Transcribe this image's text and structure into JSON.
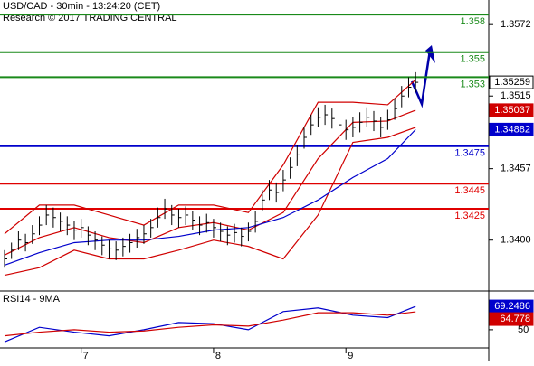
{
  "chart_data": {
    "type": "ohlc",
    "title": "USD/CAD - 30min - 13:24:20 (CET)",
    "subtitle": "Research © 2017 TRADING CENTRAL",
    "high": [
      1.3392,
      1.3398,
      1.3407,
      1.3405,
      1.3412,
      1.3419,
      1.3428,
      1.3426,
      1.3422,
      1.3419,
      1.3415,
      1.3417,
      1.3411,
      1.3407,
      1.3403,
      1.34,
      1.3399,
      1.3402,
      1.3405,
      1.3409,
      1.3412,
      1.3417,
      1.3426,
      1.3433,
      1.3428,
      1.3425,
      1.3427,
      1.3423,
      1.3419,
      1.3421,
      1.3417,
      1.3414,
      1.3411,
      1.3413,
      1.341,
      1.3414,
      1.3423,
      1.344,
      1.3448,
      1.3446,
      1.3456,
      1.3466,
      1.3476,
      1.349,
      1.35,
      1.3506,
      1.3508,
      1.3505,
      1.35,
      1.3496,
      1.3498,
      1.3502,
      1.3506,
      1.3503,
      1.3498,
      1.3504,
      1.3513,
      1.3523,
      1.353,
      1.3534
    ],
    "low": [
      1.3378,
      1.3385,
      1.3392,
      1.3391,
      1.3397,
      1.3404,
      1.3412,
      1.341,
      1.3407,
      1.3404,
      1.34,
      1.3402,
      1.3396,
      1.3392,
      1.3388,
      1.3385,
      1.3384,
      1.3387,
      1.339,
      1.3394,
      1.3397,
      1.3402,
      1.341,
      1.3417,
      1.3412,
      1.341,
      1.3412,
      1.3408,
      1.3404,
      1.3406,
      1.3402,
      1.3399,
      1.3396,
      1.3398,
      1.3395,
      1.3399,
      1.3406,
      1.3423,
      1.3432,
      1.343,
      1.3439,
      1.3449,
      1.3459,
      1.3473,
      1.3484,
      1.349,
      1.3492,
      1.3489,
      1.3484,
      1.348,
      1.3482,
      1.3486,
      1.349,
      1.3487,
      1.3482,
      1.3488,
      1.3496,
      1.3506,
      1.3514,
      1.3518
    ],
    "close": [
      1.3385,
      1.3392,
      1.34,
      1.3398,
      1.3405,
      1.3412,
      1.342,
      1.3418,
      1.3415,
      1.3412,
      1.3408,
      1.341,
      1.3404,
      1.34,
      1.3396,
      1.3393,
      1.3392,
      1.3395,
      1.3398,
      1.3402,
      1.3405,
      1.341,
      1.3418,
      1.3425,
      1.342,
      1.3418,
      1.342,
      1.3416,
      1.3412,
      1.3414,
      1.341,
      1.3407,
      1.3404,
      1.3406,
      1.3403,
      1.3407,
      1.3415,
      1.3432,
      1.344,
      1.3438,
      1.3448,
      1.3458,
      1.3468,
      1.3482,
      1.3492,
      1.3498,
      1.35,
      1.3497,
      1.3492,
      1.3488,
      1.349,
      1.3494,
      1.3498,
      1.3495,
      1.349,
      1.3496,
      1.3505,
      1.3515,
      1.3522,
      1.35259
    ],
    "line_x": [
      0,
      5,
      10,
      15,
      20,
      25,
      30,
      35,
      40,
      45,
      50,
      55,
      59
    ],
    "series": [
      {
        "color": "#d00000",
        "values": [
          1.3405,
          1.3428,
          1.3428,
          1.342,
          1.3412,
          1.3428,
          1.3428,
          1.3422,
          1.346,
          1.351,
          1.351,
          1.3508,
          1.3528
        ]
      },
      {
        "color": "#d00000",
        "values": [
          1.3372,
          1.3378,
          1.3392,
          1.3385,
          1.3385,
          1.3392,
          1.34,
          1.3395,
          1.3385,
          1.342,
          1.3478,
          1.3482,
          1.349
        ]
      },
      {
        "color": "#d00000",
        "values": [
          1.3388,
          1.3402,
          1.341,
          1.3402,
          1.3398,
          1.341,
          1.3414,
          1.3408,
          1.3422,
          1.3465,
          1.3494,
          1.3495,
          1.35037
        ]
      },
      {
        "color": "#0000cc",
        "values": [
          1.338,
          1.339,
          1.3398,
          1.34,
          1.34,
          1.3403,
          1.3408,
          1.341,
          1.3418,
          1.3432,
          1.345,
          1.3465,
          1.34882
        ]
      }
    ],
    "levels": [
      {
        "value": 1.358,
        "color": "#1a8a1a"
      },
      {
        "value": 1.355,
        "color": "#1a8a1a"
      },
      {
        "value": 1.353,
        "color": "#1a8a1a"
      },
      {
        "value": 1.3475,
        "color": "#0000cc"
      },
      {
        "value": 1.3445,
        "color": "#e00000"
      },
      {
        "value": 1.3425,
        "color": "#e00000"
      }
    ],
    "ylim": [
      1.33594,
      1.35916
    ],
    "yticks": [
      1.3572,
      1.3515,
      1.3457,
      {
        "value": 1.34,
        "label": "1.3400"
      }
    ],
    "xlim": [
      -0.65,
      69.5
    ],
    "xticks": [
      {
        "value": 11,
        "label": "7"
      },
      {
        "value": 30,
        "label": "8"
      },
      {
        "value": 49,
        "label": "9"
      }
    ],
    "rsi": {
      "title": "RSI14 - 9MA",
      "ylim": [
        35,
        82
      ],
      "yticks": [
        50
      ],
      "series": [
        {
          "color": "#0000cc",
          "values": [
            40,
            52,
            48,
            45,
            50,
            56,
            55,
            50,
            65,
            68,
            62,
            60,
            69.2486
          ]
        },
        {
          "color": "#d00000",
          "values": [
            45,
            48,
            50,
            48,
            49,
            52,
            54,
            53,
            58,
            64,
            64,
            62,
            64.778
          ]
        }
      ]
    }
  }
}
